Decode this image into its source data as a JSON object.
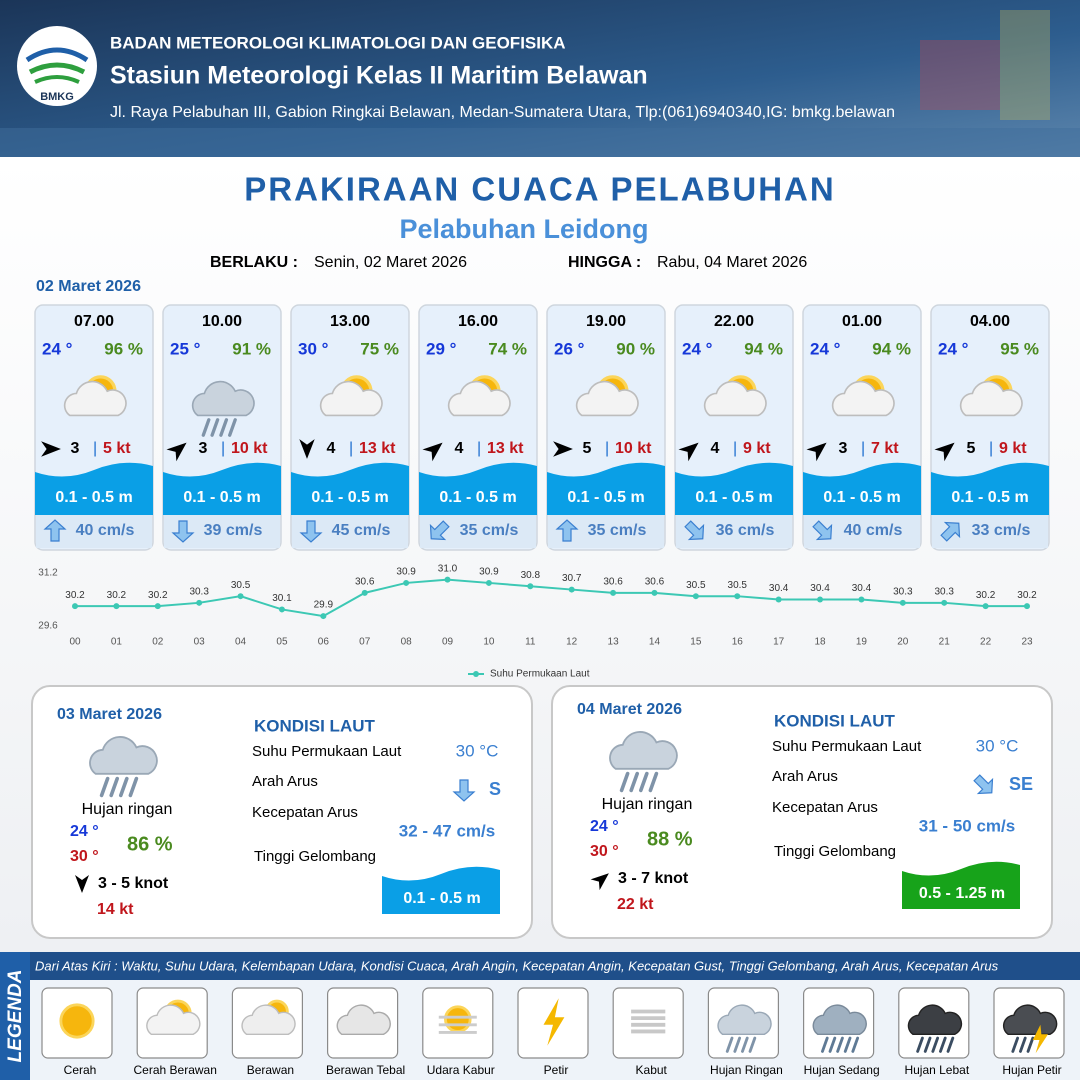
{
  "header": {
    "logo": "BMKG",
    "agency": "BADAN METEOROLOGI KLIMATOLOGI DAN GEOFISIKA",
    "station": "Stasiun Meteorologi Kelas II Maritim Belawan",
    "address": "Jl. Raya Pelabuhan III, Gabion Ringkai Belawan, Medan-Sumatera Utara, Tlp:(061)6940340,IG: bmkg.belawan"
  },
  "title": "PRAKIRAAN CUACA PELABUHAN",
  "subtitle": "Pelabuhan Leidong",
  "validity": {
    "from_label": "BERLAKU :",
    "from": "Senin, 02 Maret 2026",
    "to_label": "HINGGA :",
    "to": "Rabu, 04 Maret 2026"
  },
  "day1": {
    "date": "02 Maret 2026",
    "forecasts": [
      {
        "time": "07.00",
        "temp": "24 °",
        "humidity": "96 %",
        "wind": "3",
        "gust": "5 kt",
        "wave": "0.1 - 0.5 m",
        "current": "40 cm/s"
      },
      {
        "time": "10.00",
        "temp": "25 °",
        "humidity": "91 %",
        "wind": "3",
        "gust": "10 kt",
        "wave": "0.1 - 0.5 m",
        "current": "39 cm/s"
      },
      {
        "time": "13.00",
        "temp": "30 °",
        "humidity": "75 %",
        "wind": "4",
        "gust": "13 kt",
        "wave": "0.1 - 0.5 m",
        "current": "45 cm/s"
      },
      {
        "time": "16.00",
        "temp": "29 °",
        "humidity": "74 %",
        "wind": "4",
        "gust": "13 kt",
        "wave": "0.1 - 0.5 m",
        "current": "35 cm/s"
      },
      {
        "time": "19.00",
        "temp": "26 °",
        "humidity": "90 %",
        "wind": "5",
        "gust": "10 kt",
        "wave": "0.1 - 0.5 m",
        "current": "35 cm/s"
      },
      {
        "time": "22.00",
        "temp": "24 °",
        "humidity": "94 %",
        "wind": "4",
        "gust": "9 kt",
        "wave": "0.1 - 0.5 m",
        "current": "36 cm/s"
      },
      {
        "time": "01.00",
        "temp": "24 °",
        "humidity": "94 %",
        "wind": "3",
        "gust": "7 kt",
        "wave": "0.1 - 0.5 m",
        "current": "40 cm/s"
      },
      {
        "time": "04.00",
        "temp": "24 °",
        "humidity": "95 %",
        "wind": "5",
        "gust": "9 kt",
        "wave": "0.1 - 0.5 m",
        "current": "33 cm/s"
      }
    ]
  },
  "sst_chart": {
    "type": "line",
    "categories": [
      "00",
      "01",
      "02",
      "03",
      "04",
      "05",
      "06",
      "07",
      "08",
      "09",
      "10",
      "11",
      "12",
      "13",
      "14",
      "15",
      "16",
      "17",
      "18",
      "19",
      "20",
      "21",
      "22",
      "23"
    ],
    "series": [
      {
        "name": "Suhu Permukaan Laut",
        "color": "#3cc8b4",
        "values": [
          30.2,
          30.2,
          30.2,
          30.3,
          30.5,
          30.1,
          29.9,
          30.6,
          30.9,
          31.0,
          30.9,
          30.8,
          30.7,
          30.6,
          30.6,
          30.5,
          30.5,
          30.4,
          30.4,
          30.4,
          30.3,
          30.3,
          30.2,
          30.2
        ],
        "value_labels": [
          "30.2",
          "30.2",
          "30.2",
          "30.3",
          "30.5",
          "30.1",
          "29.9",
          "30.6",
          "30.9",
          "31.0",
          "30.9",
          "30.8",
          "30.7",
          "30.6",
          "30.6",
          "30.5",
          "30.5",
          "30.4",
          "30.4",
          "30.4",
          "30.3",
          "30.3",
          "30.2",
          "30.2"
        ]
      }
    ],
    "ylim": [
      29.6,
      31.2
    ],
    "yticks": [
      29.6,
      31.2
    ]
  },
  "days": [
    {
      "date": "03 Maret 2026",
      "condition": "Hujan ringan",
      "temp_min": "24 °",
      "temp_max": "30 °",
      "humidity": "86 %",
      "wind": "3  - 5 knot",
      "gust": "14 kt",
      "sea_title": "KONDISI LAUT",
      "sst_label": "Suhu Permukaan Laut",
      "sst": "30 °C",
      "dir_label": "Arah Arus",
      "dir": "S",
      "speed_label": "Kecepatan Arus",
      "speed": "32 - 47 cm/s",
      "wave_label": "Tinggi Gelombang",
      "wave": "0.1 - 0.5 m"
    },
    {
      "date": "04 Maret 2026",
      "condition": "Hujan ringan",
      "temp_min": "24 °",
      "temp_max": "30 °",
      "humidity": "88 %",
      "wind": "3  - 7 knot",
      "gust": "22 kt",
      "sea_title": "KONDISI LAUT",
      "sst_label": "Suhu Permukaan Laut",
      "sst": "30 °C",
      "dir_label": "Arah Arus",
      "dir": "SE",
      "speed_label": "Kecepatan Arus",
      "speed": "31  - 50 cm/s",
      "wave_label": "Tinggi Gelombang",
      "wave": "0.5 - 1.25 m"
    }
  ],
  "legend": {
    "title": "LEGENDA",
    "note": "Dari Atas Kiri : Waktu, Suhu Udara, Kelembapan Udara, Kondisi Cuaca, Arah Angin, Kecepatan Angin, Kecepatan Gust, Tinggi Gelombang, Arah Arus, Kecepatan Arus",
    "items": [
      "Cerah",
      "Cerah Berawan",
      "Berawan",
      "Berawan Tebal",
      "Udara Kabur",
      "Petir",
      "Kabut",
      "Hujan Ringan",
      "Hujan Sedang",
      "Hujan Lebat",
      "Hujan Petir"
    ]
  }
}
